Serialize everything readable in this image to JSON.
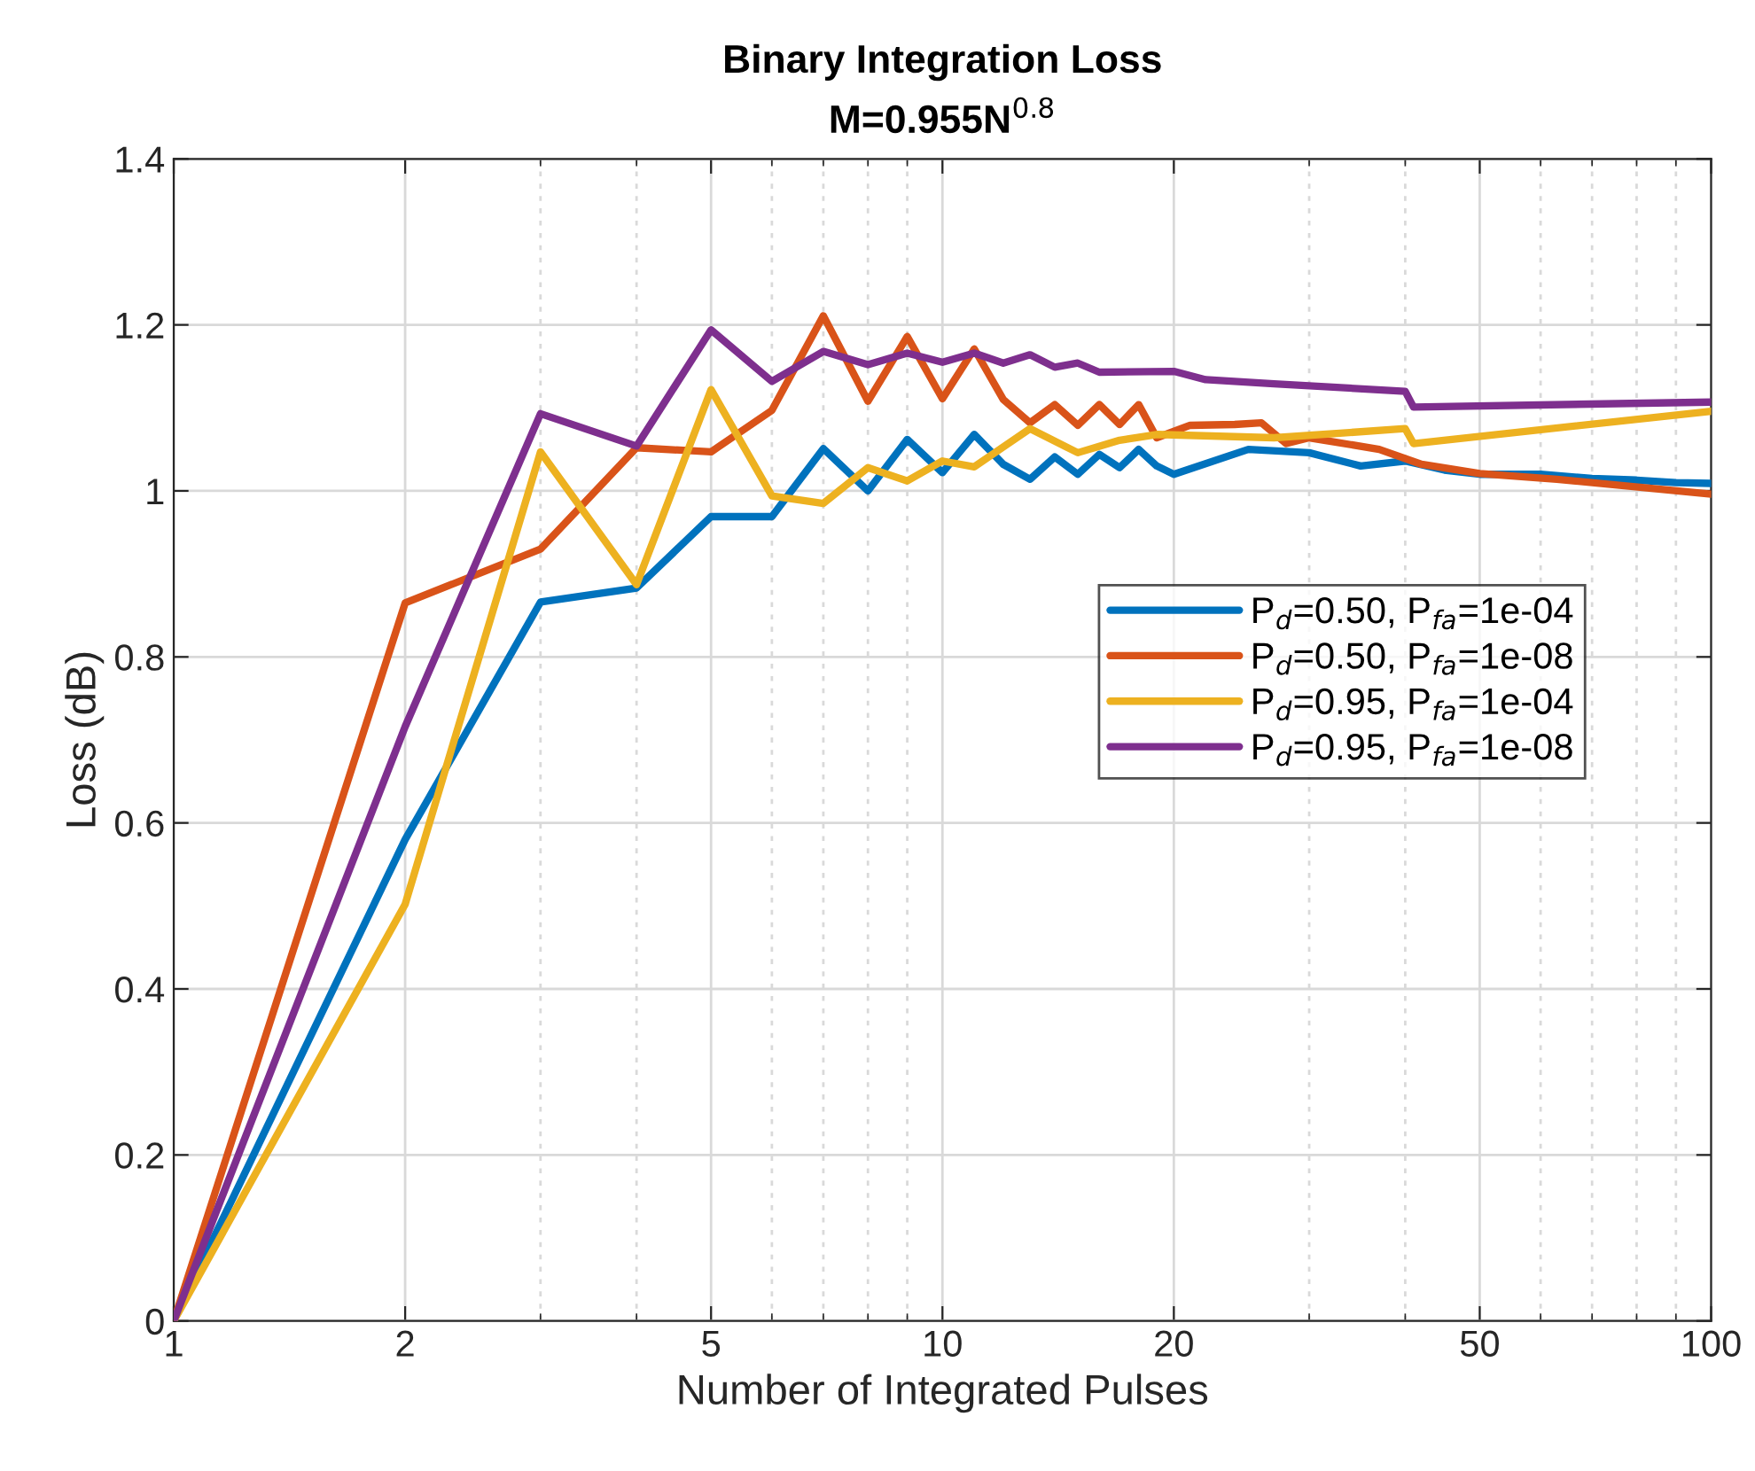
{
  "chart_data": {
    "type": "line",
    "title": "Binary Integration Loss",
    "subtitle": "M=0.955N$^{0.8}$",
    "xlabel": "Number of Integrated Pulses",
    "ylabel": "Loss (dB)",
    "log": "x",
    "grid": true,
    "legend": "right",
    "line_style": "solid",
    "marker": "none",
    "xlim": [
      1,
      100
    ],
    "xticks": [
      1,
      2,
      5,
      10,
      20,
      50,
      100
    ],
    "ylim": [
      0,
      1.4
    ],
    "yticks": [
      0,
      0.2,
      0.4,
      0.6,
      0.8,
      1,
      1.2,
      1.4
    ],
    "series": [
      {
        "name": "P$_{d}$=0.50, P$_{fa}$=1e-04",
        "color": "#0072bd",
        "x": [
          1,
          2,
          3,
          4,
          5,
          6,
          7,
          8,
          9,
          10,
          11,
          12,
          13,
          14,
          15,
          16,
          17,
          18,
          19,
          20,
          25,
          30,
          35,
          40,
          45,
          50,
          60,
          70,
          80,
          90,
          100
        ],
        "values": [
          0,
          0.58,
          0.866,
          0.883,
          0.969,
          0.969,
          1.051,
          1.0,
          1.062,
          1.022,
          1.068,
          1.032,
          1.014,
          1.041,
          1.02,
          1.044,
          1.028,
          1.05,
          1.03,
          1.02,
          1.05,
          1.046,
          1.03,
          1.036,
          1.025,
          1.02,
          1.02,
          1.015,
          1.013,
          1.01,
          1.009
        ]
      },
      {
        "name": "P$_{d}$=0.50, P$_{fa}$=1e-08",
        "color": "#d95319",
        "x": [
          1,
          2,
          3,
          4,
          5,
          6,
          7,
          8,
          9,
          10,
          11,
          12,
          13,
          14,
          15,
          16,
          17,
          18,
          19,
          21,
          24,
          26,
          28,
          30,
          37,
          42,
          50,
          63,
          100
        ],
        "values": [
          0,
          0.865,
          0.93,
          1.052,
          1.047,
          1.097,
          1.211,
          1.108,
          1.186,
          1.111,
          1.171,
          1.11,
          1.082,
          1.104,
          1.079,
          1.104,
          1.08,
          1.104,
          1.064,
          1.079,
          1.08,
          1.082,
          1.057,
          1.064,
          1.05,
          1.032,
          1.021,
          1.014,
          0.996
        ]
      },
      {
        "name": "P$_{d}$=0.95, P$_{fa}$=1e-04",
        "color": "#edb120",
        "x": [
          1,
          2,
          3,
          4,
          5,
          6,
          7,
          8,
          9,
          10,
          11,
          13,
          15,
          17,
          19,
          27,
          40,
          41,
          100
        ],
        "values": [
          0,
          0.502,
          1.047,
          0.887,
          1.122,
          0.994,
          0.985,
          1.028,
          1.012,
          1.036,
          1.029,
          1.075,
          1.046,
          1.061,
          1.068,
          1.064,
          1.075,
          1.057,
          1.096
        ]
      },
      {
        "name": "P$_{d}$=0.95, P$_{fa}$=1e-08",
        "color": "#7e2f8e",
        "x": [
          1,
          2,
          3,
          4,
          5,
          6,
          7,
          8,
          9,
          10,
          11,
          12,
          13,
          14,
          15,
          16,
          20,
          22,
          27,
          40,
          41,
          100
        ],
        "values": [
          0,
          0.716,
          1.093,
          1.054,
          1.194,
          1.132,
          1.168,
          1.152,
          1.166,
          1.155,
          1.166,
          1.154,
          1.164,
          1.149,
          1.154,
          1.143,
          1.144,
          1.134,
          1.129,
          1.12,
          1.101,
          1.107
        ]
      }
    ]
  }
}
